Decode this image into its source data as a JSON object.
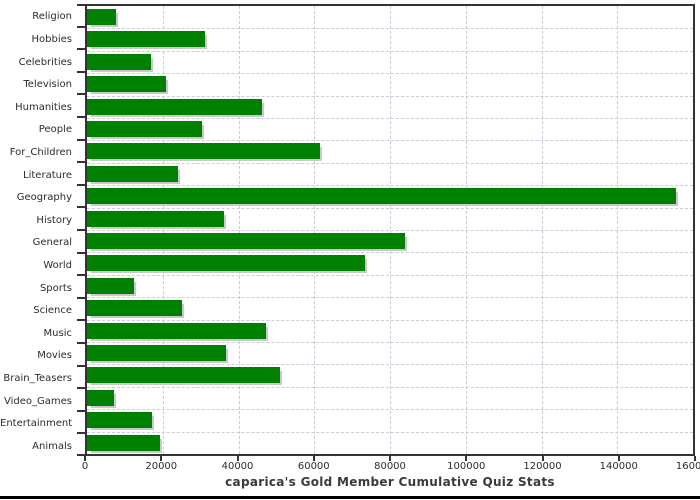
{
  "chart_data": {
    "type": "bar",
    "orientation": "horizontal",
    "title": "caparica's Gold Member Cumulative Quiz Stats",
    "categories": [
      "Religion",
      "Hobbies",
      "Celebrities",
      "Television",
      "Humanities",
      "People",
      "For_Children",
      "Literature",
      "Geography",
      "History",
      "General",
      "World",
      "Sports",
      "Science",
      "Music",
      "Movies",
      "Brain_Teasers",
      "Video_Games",
      "Entertainment",
      "Animals"
    ],
    "values": [
      7600,
      31200,
      16900,
      20800,
      46100,
      30300,
      61600,
      24100,
      155400,
      36200,
      84000,
      73300,
      12300,
      25200,
      47200,
      36600,
      51000,
      7000,
      17200,
      19300
    ],
    "xlabel": "",
    "ylabel": "",
    "xlim": [
      0,
      160000
    ],
    "x_tick_step": 20000,
    "x_tick_labels": [
      "0",
      "20000",
      "40000",
      "60000",
      "80000",
      "100000",
      "120000",
      "140000",
      "160000"
    ],
    "grid": "dashed vertical and horizontal",
    "legend": "none",
    "bar_color": "#008000",
    "bar_shadow_color": "#c9c9c9",
    "grid_color": "#c8ced8",
    "axis_color": "#333333",
    "text_color": "#2b2b2b",
    "title_color": "#3a3a3a",
    "background_color": "#ffffff"
  }
}
